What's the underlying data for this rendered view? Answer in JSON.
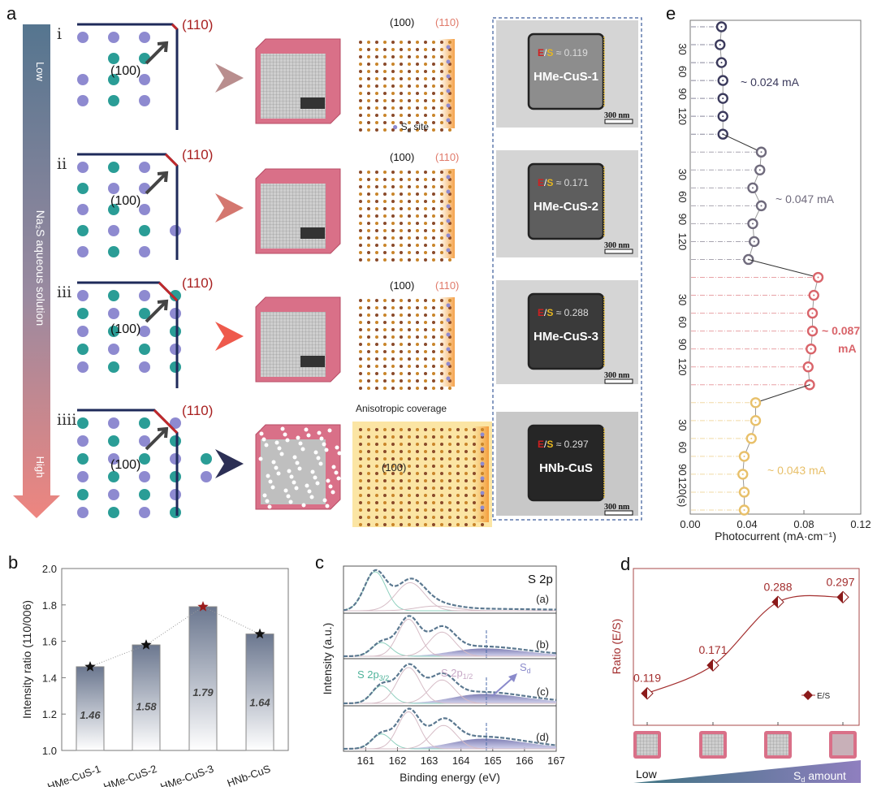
{
  "panel_labels": {
    "a": "a",
    "b": "b",
    "c": "c",
    "d": "d",
    "e": "e"
  },
  "panel_a": {
    "arrow": {
      "low": "Low",
      "middle": "Na₂S aqueous solution",
      "high": "High"
    },
    "rows": [
      {
        "roman": "i",
        "facet_label": "(110)",
        "plane_label": "(100)",
        "chevron_color": "#b98e8e",
        "lattice_top_left": "(100)",
        "lattice_top_right": "(110)",
        "tem": {
          "e": "E",
          "s": "S",
          "ratio": "≈ 0.119",
          "name": "HMe-CuS-1",
          "scale": "300 nm"
        }
      },
      {
        "roman": "ii",
        "facet_label": "(110)",
        "plane_label": "(100)",
        "chevron_color": "#d4776f",
        "lattice_top_left": "(100)",
        "lattice_top_right": "(110)",
        "tem": {
          "e": "E",
          "s": "S",
          "ratio": "≈ 0.171",
          "name": "HMe-CuS-2",
          "scale": "300 nm"
        }
      },
      {
        "roman": "iii",
        "facet_label": "(110)",
        "plane_label": "(100)",
        "chevron_color": "#ee5a4c",
        "lattice_top_left": "(100)",
        "lattice_top_right": "(110)",
        "tem": {
          "e": "E",
          "s": "S",
          "ratio": "≈ 0.288",
          "name": "HMe-CuS-3",
          "scale": "300 nm"
        }
      },
      {
        "roman": "iiii",
        "facet_label": "(110)",
        "plane_label": "(100)",
        "chevron_color": "#2c2f55",
        "lattice_top_left": "Anisotropic coverage",
        "lattice_center": "(100)",
        "tem": {
          "e": "E",
          "s": "S",
          "ratio": "≈ 0.297",
          "name": "HNb-CuS",
          "scale": "300 nm"
        }
      }
    ],
    "sd_site": {
      "main": "S",
      "sub": "d",
      "rest": " site"
    }
  },
  "chart_data": [
    {
      "panel": "b",
      "type": "bar",
      "categories": [
        "HMe-CuS-1",
        "HMe-CuS-2",
        "HMe-CuS-3",
        "HNb-CuS"
      ],
      "values": [
        1.46,
        1.58,
        1.79,
        1.64
      ],
      "value_labels": [
        "1.46",
        "1.58",
        "1.79",
        "1.64"
      ],
      "xlabel": "",
      "ylabel": "Intensity ratio (110/006)",
      "ylim": [
        1.0,
        2.0
      ],
      "yticks": [
        "1.0",
        "1.2",
        "1.4",
        "1.6",
        "1.8",
        "2.0"
      ],
      "highlight_index": 2,
      "colors": {
        "bar_top": "#6b778f",
        "star": "#111111",
        "star_highlight": "#9b1c1c"
      }
    },
    {
      "panel": "c",
      "type": "line",
      "title": "S 2p",
      "xlabel": "Binding energy (eV)",
      "ylabel": "Intensity (a.u.)",
      "xlim": [
        160.3,
        167.0
      ],
      "xticks": [
        "161",
        "162",
        "163",
        "164",
        "165",
        "166",
        "167"
      ],
      "sd_position": 164.8,
      "annotations": {
        "p32_main": "S 2p",
        "p32_sub": "3/2",
        "p12_main": "S 2p",
        "p12_sub": "1/2",
        "sd_main": "S",
        "sd_sub": "d"
      },
      "spectra": [
        {
          "label": "(a)",
          "components": [
            {
              "type": "S 2p3/2",
              "center": 161.3,
              "amp": 1.0,
              "sigma": 0.34
            },
            {
              "type": "S 2p1/2",
              "center": 162.4,
              "amp": 0.72,
              "sigma": 0.45
            },
            {
              "type": "S 2p1/2",
              "center": 163.2,
              "amp": 0.12,
              "sigma": 0.6
            }
          ],
          "sd": null
        },
        {
          "label": "(b)",
          "components": [
            {
              "type": "S 2p3/2",
              "center": 161.5,
              "amp": 0.35,
              "sigma": 0.3
            },
            {
              "type": "S 2p1/2",
              "center": 162.35,
              "amp": 0.95,
              "sigma": 0.34
            },
            {
              "type": "S 2p1/2",
              "center": 163.4,
              "amp": 0.62,
              "sigma": 0.4
            }
          ],
          "sd": {
            "center": 164.7,
            "amp": 0.2,
            "sigma": 0.75
          }
        },
        {
          "label": "(c)",
          "components": [
            {
              "type": "S 2p3/2",
              "center": 161.5,
              "amp": 0.45,
              "sigma": 0.3
            },
            {
              "type": "S 2p1/2",
              "center": 162.35,
              "amp": 0.92,
              "sigma": 0.36
            },
            {
              "type": "S 2p1/2",
              "center": 163.4,
              "amp": 0.6,
              "sigma": 0.4
            }
          ],
          "sd": {
            "center": 164.7,
            "amp": 0.24,
            "sigma": 0.75
          }
        },
        {
          "label": "(d)",
          "components": [
            {
              "type": "S 2p3/2",
              "center": 161.5,
              "amp": 0.38,
              "sigma": 0.3
            },
            {
              "type": "S 2p1/2",
              "center": 162.35,
              "amp": 0.95,
              "sigma": 0.34
            },
            {
              "type": "S 2p1/2",
              "center": 163.45,
              "amp": 0.6,
              "sigma": 0.4
            }
          ],
          "sd": {
            "center": 164.7,
            "amp": 0.26,
            "sigma": 0.75
          }
        }
      ]
    },
    {
      "panel": "d",
      "type": "line",
      "categories": [
        "HMe-CuS-1",
        "HMe-CuS-2",
        "HMe-CuS-3",
        "HNb-CuS"
      ],
      "values": [
        0.119,
        0.171,
        0.288,
        0.297
      ],
      "value_labels": [
        "0.119",
        "0.171",
        "0.288",
        "0.297"
      ],
      "ylabel": "Ratio (E/S)",
      "legend": "E/S",
      "legend_position": "bottom-right",
      "ylim": [
        0.06,
        0.35
      ],
      "bottom_bar": {
        "low": "Low",
        "high_main": "S",
        "high_sub": "d",
        "high_rest": " amount"
      },
      "color": "#a32e2e"
    },
    {
      "panel": "e",
      "type": "scatter",
      "xlabel": "Photocurrent (mA·cm⁻¹)",
      "xlim": [
        0.0,
        0.12
      ],
      "xticks": [
        "0.00",
        "0.04",
        "0.08",
        "0.12"
      ],
      "time_ticks": [
        "30",
        "60",
        "90",
        "120"
      ],
      "last_time_tick": "120(s)",
      "groups": [
        {
          "name": "HMe-CuS-1",
          "annotation": "~ 0.024 mA",
          "color": "#3b3a5c",
          "values": [
            0.022,
            0.021,
            0.022,
            0.023,
            0.023,
            0.023,
            0.023
          ]
        },
        {
          "name": "HMe-CuS-2",
          "annotation": "~ 0.047 mA",
          "color": "#6f6a7c",
          "values": [
            0.05,
            0.049,
            0.044,
            0.05,
            0.044,
            0.045,
            0.041
          ]
        },
        {
          "name": "HMe-CuS-3",
          "annotation": "~ 0.087",
          "annotation2": "mA",
          "color": "#d9646a",
          "values": [
            0.09,
            0.087,
            0.086,
            0.086,
            0.085,
            0.083,
            0.084
          ]
        },
        {
          "name": "HNb-CuS",
          "annotation": "~ 0.043 mA",
          "color": "#e8c06a",
          "values": [
            0.046,
            0.046,
            0.043,
            0.038,
            0.037,
            0.038,
            0.038
          ]
        }
      ]
    }
  ]
}
